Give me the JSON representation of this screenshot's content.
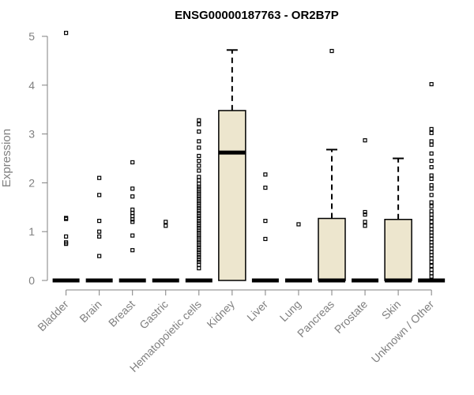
{
  "chart_data": {
    "type": "box",
    "title": "ENSG00000187763 - OR2B7P",
    "xlabel": "",
    "ylabel": "Expression",
    "ylim": [
      0,
      5
    ],
    "yticks": [
      0,
      1,
      2,
      3,
      4,
      5
    ],
    "grid": false,
    "legend": "none",
    "colors": {
      "box_fill": "#ede6ce",
      "stroke": "#000000",
      "axis_text": "#808080"
    },
    "categories": [
      "Bladder",
      "Brain",
      "Breast",
      "Gastric",
      "Hematopoietic cells",
      "Kidney",
      "Liver",
      "Lung",
      "Pancreas",
      "Prostate",
      "Skin",
      "Unknown / Other"
    ],
    "boxes": [
      {
        "category": "Bladder",
        "q1": 0,
        "median": 0,
        "q3": 0,
        "whisker_low": 0,
        "whisker_high": 0,
        "outliers": [
          5.07,
          1.28,
          1.26,
          0.9,
          0.78,
          0.75
        ]
      },
      {
        "category": "Brain",
        "q1": 0,
        "median": 0,
        "q3": 0,
        "whisker_low": 0,
        "whisker_high": 0,
        "outliers": [
          2.1,
          1.75,
          1.22,
          1.0,
          0.9,
          0.5
        ]
      },
      {
        "category": "Breast",
        "q1": 0,
        "median": 0,
        "q3": 0,
        "whisker_low": 0,
        "whisker_high": 0,
        "outliers": [
          2.42,
          1.88,
          1.72,
          1.45,
          1.38,
          1.32,
          1.25,
          1.2,
          0.92,
          0.62
        ]
      },
      {
        "category": "Gastric",
        "q1": 0,
        "median": 0,
        "q3": 0,
        "whisker_low": 0,
        "whisker_high": 0,
        "outliers": [
          1.2,
          1.12
        ]
      },
      {
        "category": "Hematopoietic cells",
        "q1": 0,
        "median": 0,
        "q3": 0,
        "whisker_low": 0,
        "whisker_high": 0,
        "outliers": [
          3.28,
          3.2,
          3.05,
          2.85,
          2.72,
          2.55,
          2.45,
          2.35,
          2.25,
          2.12,
          2.05,
          1.98,
          1.92,
          1.88,
          1.82,
          1.78,
          1.72,
          1.68,
          1.62,
          1.58,
          1.52,
          1.48,
          1.42,
          1.38,
          1.32,
          1.28,
          1.22,
          1.18,
          1.12,
          1.08,
          1.02,
          0.98,
          0.92,
          0.88,
          0.82,
          0.78,
          0.72,
          0.68,
          0.62,
          0.58,
          0.52,
          0.48,
          0.42,
          0.38,
          0.32,
          0.25
        ]
      },
      {
        "category": "Kidney",
        "q1": 0,
        "median": 2.62,
        "q3": 3.48,
        "whisker_low": 0,
        "whisker_high": 4.72,
        "outliers": []
      },
      {
        "category": "Liver",
        "q1": 0,
        "median": 0,
        "q3": 0,
        "whisker_low": 0,
        "whisker_high": 0,
        "outliers": [
          2.17,
          1.9,
          1.22,
          0.85
        ]
      },
      {
        "category": "Lung",
        "q1": 0,
        "median": 0,
        "q3": 0,
        "whisker_low": 0,
        "whisker_high": 0,
        "outliers": [
          1.15
        ]
      },
      {
        "category": "Pancreas",
        "q1": 0,
        "median": 0,
        "q3": 1.27,
        "whisker_low": 0,
        "whisker_high": 2.68,
        "outliers": [
          4.7
        ]
      },
      {
        "category": "Prostate",
        "q1": 0,
        "median": 0,
        "q3": 0,
        "whisker_low": 0,
        "whisker_high": 0,
        "outliers": [
          2.87,
          1.4,
          1.35,
          1.2,
          1.12
        ]
      },
      {
        "category": "Skin",
        "q1": 0,
        "median": 0,
        "q3": 1.25,
        "whisker_low": 0,
        "whisker_high": 2.5,
        "outliers": []
      },
      {
        "category": "Unknown / Other",
        "q1": 0,
        "median": 0,
        "q3": 0,
        "whisker_low": 0,
        "whisker_high": 0,
        "outliers": [
          4.02,
          3.1,
          3.02,
          2.85,
          2.78,
          2.6,
          2.45,
          2.32,
          2.15,
          2.08,
          1.95,
          1.88,
          1.75,
          1.6,
          1.52,
          1.42,
          1.35,
          1.28,
          1.2,
          1.12,
          1.05,
          0.98,
          0.92,
          0.85,
          0.78,
          0.72,
          0.65,
          0.58,
          0.52,
          0.45,
          0.38,
          0.3,
          0.22,
          0.15,
          0.08
        ]
      }
    ]
  }
}
